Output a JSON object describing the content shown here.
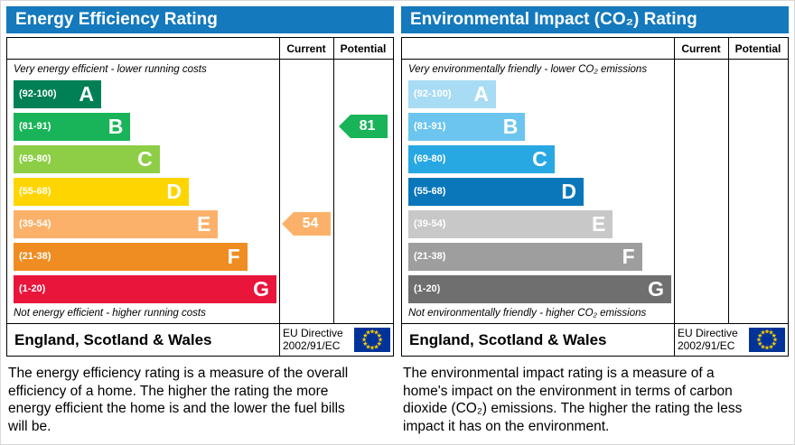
{
  "ui": {
    "header_bg": "#1479bd",
    "header_text_color": "#ffffff",
    "border_color": "#000000",
    "flag_bg": "#003399",
    "flag_star_color": "#ffcc00"
  },
  "chart_data": [
    {
      "type": "bar",
      "title": "Energy Efficiency Rating",
      "columns": {
        "current_label": "Current",
        "potential_label": "Potential"
      },
      "top_note": "Very energy efficient - lower running costs",
      "bottom_note": "Not energy efficient - higher running costs",
      "bands": [
        {
          "range": "(92-100)",
          "letter": "A",
          "color": "#008054",
          "width_pct": 33
        },
        {
          "range": "(81-91)",
          "letter": "B",
          "color": "#19b459",
          "width_pct": 44
        },
        {
          "range": "(69-80)",
          "letter": "C",
          "color": "#8dce46",
          "width_pct": 55
        },
        {
          "range": "(55-68)",
          "letter": "D",
          "color": "#ffd500",
          "width_pct": 66
        },
        {
          "range": "(39-54)",
          "letter": "E",
          "color": "#fbb16a",
          "width_pct": 77
        },
        {
          "range": "(21-38)",
          "letter": "F",
          "color": "#ef8d22",
          "width_pct": 88
        },
        {
          "range": "(1-20)",
          "letter": "G",
          "color": "#e9153b",
          "width_pct": 99
        }
      ],
      "current": {
        "value": "54",
        "band_letter": "E",
        "band_index": 4,
        "color": "#fbb16a"
      },
      "potential": {
        "value": "81",
        "band_letter": "B",
        "band_index": 1,
        "color": "#19b459"
      },
      "footer": {
        "region": "England, Scotland & Wales",
        "directive_line1": "EU Directive",
        "directive_line2": "2002/91/EC"
      },
      "caption": "The energy efficiency rating is a measure of the overall efficiency of a home. The higher the rating the more energy efficient the home is and the lower the fuel bills will be."
    },
    {
      "type": "bar",
      "title": "Environmental Impact (CO₂) Rating",
      "columns": {
        "current_label": "Current",
        "potential_label": "Potential"
      },
      "top_note": "Very environmentally friendly - lower CO₂ emissions",
      "bottom_note": "Not environmentally friendly - higher CO₂ emissions",
      "bands": [
        {
          "range": "(92-100)",
          "letter": "A",
          "color": "#a8dbf4",
          "width_pct": 33
        },
        {
          "range": "(81-91)",
          "letter": "B",
          "color": "#6cc5ee",
          "width_pct": 44
        },
        {
          "range": "(69-80)",
          "letter": "C",
          "color": "#28a8e2",
          "width_pct": 55
        },
        {
          "range": "(55-68)",
          "letter": "D",
          "color": "#0a77ba",
          "width_pct": 66
        },
        {
          "range": "(39-54)",
          "letter": "E",
          "color": "#c8c8c8",
          "width_pct": 77
        },
        {
          "range": "(21-38)",
          "letter": "F",
          "color": "#9e9e9e",
          "width_pct": 88
        },
        {
          "range": "(1-20)",
          "letter": "G",
          "color": "#6f6f6f",
          "width_pct": 99
        }
      ],
      "current": null,
      "potential": null,
      "footer": {
        "region": "England, Scotland & Wales",
        "directive_line1": "EU Directive",
        "directive_line2": "2002/91/EC"
      },
      "caption": "The environmental impact rating is a measure of a home's impact on the environment in terms of carbon dioxide (CO₂) emissions. The higher the rating the less impact it has on the environment."
    }
  ]
}
